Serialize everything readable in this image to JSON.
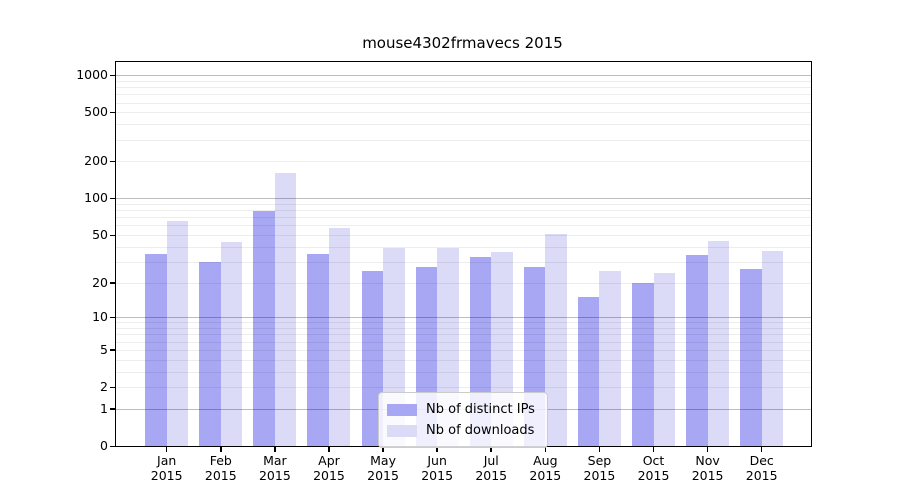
{
  "title": "mouse4302frmavecs 2015",
  "colors": {
    "ips_bar": "#a7a7f4",
    "downloads_bar": "#dbdbf8",
    "axis": "#000000",
    "grid_major": "#bdbdbd",
    "grid_minor": "#ededed",
    "legend_border": "#cccccc",
    "legend_bg": "#ffffff"
  },
  "legend": {
    "items": [
      {
        "label": "Nb of distinct IPs",
        "color": "#a7a7f4"
      },
      {
        "label": "Nb of downloads",
        "color": "#dbdbf8"
      }
    ],
    "position": "lower center"
  },
  "chart_data": {
    "type": "bar",
    "title": "mouse4302frmavecs 2015",
    "categories": [
      "Jan",
      "Feb",
      "Mar",
      "Apr",
      "May",
      "Jun",
      "Jul",
      "Aug",
      "Sep",
      "Oct",
      "Nov",
      "Dec"
    ],
    "year_label": "2015",
    "series": [
      {
        "name": "Nb of distinct IPs",
        "color": "#a7a7f4",
        "values": [
          35,
          30,
          79,
          35,
          25,
          27,
          33,
          27,
          15,
          20,
          34,
          26
        ]
      },
      {
        "name": "Nb of downloads",
        "color": "#dbdbf8",
        "values": [
          65,
          44,
          160,
          57,
          39,
          39,
          36,
          51,
          25,
          24,
          45,
          37
        ]
      }
    ],
    "y_ticks": [
      1000,
      500,
      200,
      100,
      50,
      20,
      10,
      5,
      2,
      1,
      0
    ],
    "grid_major_values": [
      1,
      10,
      100,
      1000
    ],
    "grid_minor_base": [
      2,
      3,
      4,
      5,
      6,
      7,
      8,
      9
    ],
    "scale": "log10(1+x)",
    "ylim": [
      0,
      1260
    ],
    "grid": true,
    "legend_position": "lower center",
    "xlabel": "",
    "ylabel": ""
  }
}
